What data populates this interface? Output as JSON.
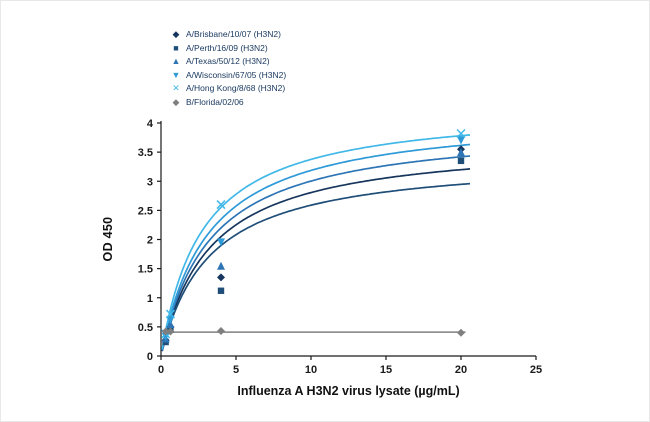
{
  "figure": {
    "background": "#ffffff",
    "border_color": "#e8e8e8",
    "legend_text_color": "#17375e",
    "axis_color": "#1a1a1a"
  },
  "chart_data": {
    "type": "scatter",
    "title": "",
    "xlabel": "Influenza A H3N2 virus lysate (µg/mL)",
    "ylabel": "OD 450",
    "xlim": [
      0,
      25
    ],
    "ylim": [
      0,
      4
    ],
    "x_ticks": [
      0,
      5,
      10,
      15,
      20,
      25
    ],
    "y_ticks": [
      0,
      0.5,
      1,
      1.5,
      2,
      2.5,
      3,
      3.5,
      4
    ],
    "grid": false,
    "legend_position": "top-left",
    "series": [
      {
        "name": "A/Brisbane/10/07 (H3N2)",
        "color": "#17365d",
        "marker": "diamond",
        "curve": {
          "type": "saturation",
          "vmax": 3.72,
          "k": 3.26
        },
        "points": [
          [
            0.31,
            0.27
          ],
          [
            0.63,
            0.5
          ],
          [
            4,
            1.35
          ],
          [
            20,
            3.55
          ]
        ]
      },
      {
        "name": "A/Perth/16/09 (H3N2)",
        "color": "#1f4e79",
        "marker": "square",
        "curve": {
          "type": "saturation",
          "vmax": 3.42,
          "k": 3.21
        },
        "points": [
          [
            0.31,
            0.24
          ],
          [
            0.63,
            0.45
          ],
          [
            4,
            1.12
          ],
          [
            20,
            3.35
          ]
        ]
      },
      {
        "name": "A/Texas/50/12 (H3N2)",
        "color": "#2e75b6",
        "marker": "triangle-up",
        "curve": {
          "type": "saturation",
          "vmax": 3.97,
          "k": 3.22
        },
        "points": [
          [
            0.31,
            0.3
          ],
          [
            0.63,
            0.55
          ],
          [
            4,
            1.55
          ],
          [
            20,
            3.5
          ]
        ]
      },
      {
        "name": "A/Wisconsin/67/05 (H3N2)",
        "color": "#2e9ad7",
        "marker": "triangle-down",
        "curve": {
          "type": "saturation",
          "vmax": 4.18,
          "k": 3.12
        },
        "points": [
          [
            0.31,
            0.33
          ],
          [
            0.63,
            0.62
          ],
          [
            4,
            1.95
          ],
          [
            20,
            3.7
          ]
        ]
      },
      {
        "name": "A/Hong Kong/8/68 (H3N2)",
        "color": "#41b8e8",
        "marker": "x",
        "curve": {
          "type": "saturation",
          "vmax": 4.3,
          "k": 2.74
        },
        "points": [
          [
            0.31,
            0.38
          ],
          [
            0.63,
            0.72
          ],
          [
            4,
            2.6
          ],
          [
            20,
            3.82
          ]
        ]
      },
      {
        "name": "B/Florida/02/06",
        "color": "#7f7f7f",
        "marker": "diamond",
        "curve": {
          "type": "flat",
          "value": 0.41
        },
        "points": [
          [
            0.31,
            0.42
          ],
          [
            0.63,
            0.42
          ],
          [
            4,
            0.43
          ],
          [
            20,
            0.4
          ]
        ]
      }
    ]
  }
}
